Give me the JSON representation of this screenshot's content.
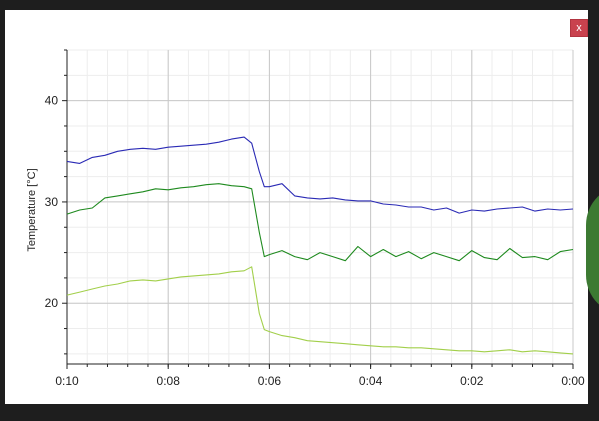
{
  "window": {
    "close_label": "x"
  },
  "colors": {
    "accent": "#3c7a32",
    "close": "#c9424e",
    "background": "#1e1e1e"
  },
  "chart_data": {
    "type": "line",
    "title": "",
    "xlabel": "",
    "ylabel": "Temperature [°C]",
    "xlim": [
      10,
      0
    ],
    "ylim": [
      14,
      45
    ],
    "yticks": [
      20,
      30,
      40
    ],
    "xticks": [
      {
        "value": 10,
        "label": "0:10"
      },
      {
        "value": 8,
        "label": "0:08"
      },
      {
        "value": 6,
        "label": "0:06"
      },
      {
        "value": 4,
        "label": "0:04"
      },
      {
        "value": 2,
        "label": "0:02"
      },
      {
        "value": 0,
        "label": "0:00"
      }
    ],
    "grid": true,
    "legend": "none",
    "series": [
      {
        "color": "#2a2ab5",
        "x": [
          10,
          9.75,
          9.5,
          9.25,
          9,
          8.75,
          8.5,
          8.25,
          8,
          7.75,
          7.5,
          7.25,
          7,
          6.75,
          6.5,
          6.35,
          6.2,
          6.1,
          6,
          5.75,
          5.5,
          5.25,
          5,
          4.75,
          4.5,
          4.25,
          4,
          3.75,
          3.5,
          3.25,
          3,
          2.75,
          2.5,
          2.25,
          2,
          1.75,
          1.5,
          1.25,
          1,
          0.75,
          0.5,
          0.25,
          0
        ],
        "values": [
          34,
          33.8,
          34.4,
          34.6,
          35,
          35.2,
          35.3,
          35.2,
          35.4,
          35.5,
          35.6,
          35.7,
          35.9,
          36.2,
          36.4,
          35.8,
          33,
          31.5,
          31.5,
          31.8,
          30.6,
          30.4,
          30.3,
          30.4,
          30.2,
          30.1,
          30.1,
          29.8,
          29.7,
          29.5,
          29.5,
          29.2,
          29.4,
          28.9,
          29.2,
          29.1,
          29.3,
          29.4,
          29.5,
          29.1,
          29.3,
          29.2,
          29.3
        ]
      },
      {
        "color": "#1e8a1e",
        "x": [
          10,
          9.75,
          9.5,
          9.25,
          9,
          8.75,
          8.5,
          8.25,
          8,
          7.75,
          7.5,
          7.25,
          7,
          6.75,
          6.5,
          6.35,
          6.2,
          6.1,
          6,
          5.75,
          5.5,
          5.25,
          5,
          4.75,
          4.5,
          4.25,
          4,
          3.75,
          3.5,
          3.25,
          3,
          2.75,
          2.5,
          2.25,
          2,
          1.75,
          1.5,
          1.25,
          1,
          0.75,
          0.5,
          0.25,
          0
        ],
        "values": [
          28.8,
          29.2,
          29.4,
          30.4,
          30.6,
          30.8,
          31,
          31.3,
          31.2,
          31.4,
          31.5,
          31.7,
          31.8,
          31.6,
          31.5,
          31.3,
          27,
          24.6,
          24.8,
          25.2,
          24.6,
          24.3,
          25,
          24.6,
          24.2,
          25.6,
          24.6,
          25.3,
          24.6,
          25.1,
          24.4,
          25,
          24.6,
          24.2,
          25.2,
          24.5,
          24.3,
          25.4,
          24.5,
          24.6,
          24.3,
          25.1,
          25.3
        ]
      },
      {
        "color": "#a2cf4a",
        "x": [
          10,
          9.75,
          9.5,
          9.25,
          9,
          8.75,
          8.5,
          8.25,
          8,
          7.75,
          7.5,
          7.25,
          7,
          6.75,
          6.5,
          6.35,
          6.2,
          6.1,
          6,
          5.75,
          5.5,
          5.25,
          5,
          4.75,
          4.5,
          4.25,
          4,
          3.75,
          3.5,
          3.25,
          3,
          2.75,
          2.5,
          2.25,
          2,
          1.75,
          1.5,
          1.25,
          1,
          0.75,
          0.5,
          0.25,
          0
        ],
        "values": [
          20.8,
          21.1,
          21.4,
          21.7,
          21.9,
          22.2,
          22.3,
          22.2,
          22.4,
          22.6,
          22.7,
          22.8,
          22.9,
          23.1,
          23.2,
          23.6,
          19,
          17.4,
          17.2,
          16.8,
          16.6,
          16.3,
          16.2,
          16.1,
          16,
          15.9,
          15.8,
          15.7,
          15.7,
          15.6,
          15.6,
          15.5,
          15.4,
          15.3,
          15.3,
          15.2,
          15.3,
          15.4,
          15.2,
          15.3,
          15.2,
          15.1,
          15
        ]
      }
    ]
  }
}
